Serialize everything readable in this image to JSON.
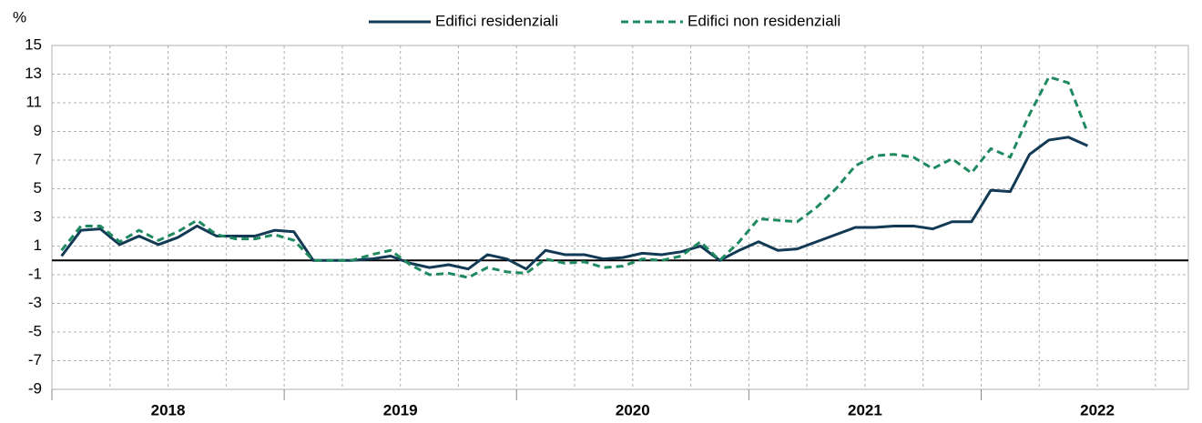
{
  "chart_data": {
    "type": "line",
    "y_unit": "%",
    "categories": [
      null,
      null,
      null,
      null,
      null,
      null,
      null,
      null,
      null,
      null,
      null,
      null,
      null,
      null,
      null,
      null,
      null,
      null,
      null,
      null,
      null,
      null,
      null,
      null,
      null,
      null,
      null,
      null,
      null,
      null,
      null,
      null,
      null,
      null,
      null,
      null,
      null,
      null,
      null,
      null,
      null,
      null,
      null,
      null,
      null,
      null,
      null,
      null,
      null,
      null,
      null,
      null,
      null,
      null,
      null,
      null,
      null,
      null,
      null,
      null
    ],
    "x_groups": [
      "2018",
      "2019",
      "2020",
      "2021",
      "2022"
    ],
    "series": [
      {
        "name": "Edifici residenziali",
        "color": "#123a55",
        "dash": false,
        "values": [
          0.3,
          2.1,
          2.2,
          1.1,
          1.7,
          1.1,
          1.6,
          2.4,
          1.7,
          1.7,
          1.7,
          2.1,
          2.0,
          0,
          0,
          0,
          0.1,
          0.3,
          -0.2,
          -0.5,
          -0.3,
          -0.6,
          0.4,
          0.1,
          -0.6,
          0.7,
          0.4,
          0.4,
          0.1,
          0.2,
          0.5,
          0.4,
          0.6,
          1.0,
          0.0,
          0.7,
          1.3,
          0.7,
          0.8,
          1.3,
          1.8,
          2.3,
          2.3,
          2.4,
          2.4,
          2.2,
          2.7,
          2.7,
          4.9,
          4.8,
          7.4,
          8.4,
          8.6,
          8.0,
          null,
          null,
          null,
          null,
          null,
          null
        ]
      },
      {
        "name": "Edifici non residenziali",
        "color": "#1f8a60",
        "dash": true,
        "values": [
          0.7,
          2.4,
          2.4,
          1.3,
          2.1,
          1.4,
          2.0,
          2.8,
          1.8,
          1.5,
          1.5,
          1.8,
          1.4,
          0,
          0,
          0,
          0.4,
          0.7,
          -0.3,
          -1.0,
          -0.9,
          -1.2,
          -0.5,
          -0.8,
          -0.9,
          0.1,
          -0.2,
          -0.1,
          -0.5,
          -0.4,
          0.1,
          0.0,
          0.3,
          1.3,
          0.0,
          1.3,
          2.9,
          2.8,
          2.7,
          3.7,
          5.0,
          6.6,
          7.3,
          7.4,
          7.2,
          6.4,
          7.1,
          6.1,
          7.8,
          7.2,
          10.2,
          12.8,
          12.4,
          8.9,
          null,
          null,
          null,
          null,
          null,
          null
        ]
      }
    ],
    "ylim": [
      -9,
      15
    ],
    "yticks": [
      -9,
      -7,
      -5,
      -3,
      -1,
      1,
      3,
      5,
      7,
      9,
      11,
      13,
      15
    ],
    "grid": true,
    "legend": "top"
  }
}
